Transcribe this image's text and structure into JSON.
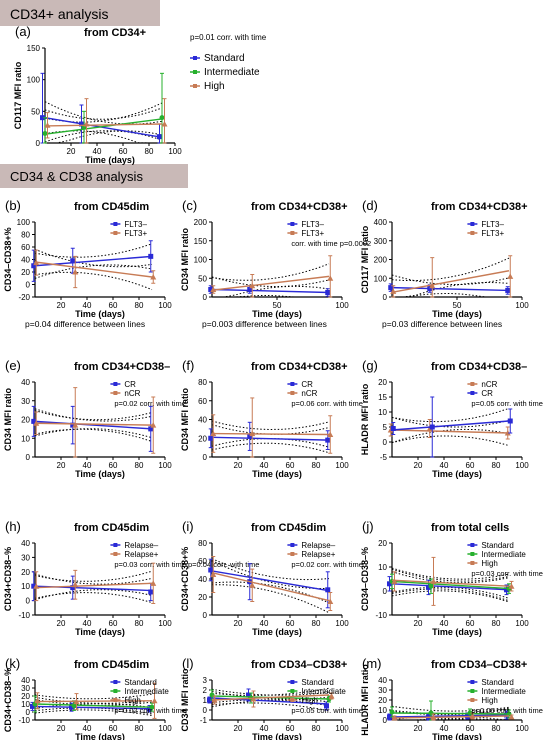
{
  "sections": [
    {
      "title": "CD34+ analysis"
    },
    {
      "title": "CD34 & CD38 analysis"
    }
  ],
  "colors": {
    "section_bg": "#c9b9b7",
    "blue": "#2a2ad6",
    "brown": "#c77b55",
    "green": "#27b02e",
    "error": "#e07b55"
  },
  "chart_data": [
    {
      "id": "a",
      "type": "line",
      "panel_label": "(a)",
      "title": "from CD34+",
      "xlabel": "Time (days)",
      "ylabel": "CD117 MFI ratio",
      "xlim": [
        0,
        100
      ],
      "ylim": [
        0,
        150
      ],
      "xticks": [
        20,
        40,
        60,
        80,
        100
      ],
      "yticks": [
        0,
        50,
        100,
        150
      ],
      "x": [
        0,
        30,
        90
      ],
      "series": [
        {
          "name": "Standard",
          "color": "#2a2ad6",
          "values": [
            40,
            30,
            10
          ],
          "err": [
            70,
            30,
            20
          ],
          "trend": [
            40,
            9
          ]
        },
        {
          "name": "Intermediate",
          "color": "#27b02e",
          "values": [
            15,
            25,
            40
          ],
          "err": [
            25,
            25,
            70
          ],
          "trend": [
            14,
            38
          ]
        },
        {
          "name": "High",
          "color": "#c77b55",
          "values": [
            28,
            30,
            30
          ],
          "err": [
            20,
            40,
            40
          ],
          "trend": [
            27,
            30
          ]
        }
      ],
      "legend_note": "p=0.01 corr. with time",
      "annotations": []
    },
    {
      "id": "b",
      "type": "line",
      "panel_label": "(b)",
      "title": "from CD45dim",
      "xlabel": "Time (days)",
      "ylabel": "CD34–CD38+%",
      "xlim": [
        0,
        100
      ],
      "ylim": [
        -20,
        100
      ],
      "xticks": [
        20,
        40,
        60,
        80,
        100
      ],
      "yticks": [
        -20,
        0,
        20,
        40,
        60,
        80,
        100
      ],
      "x": [
        0,
        30,
        90
      ],
      "series": [
        {
          "name": "FLT3–",
          "color": "#2a2ad6",
          "values": [
            30,
            38,
            45
          ],
          "err": [
            25,
            20,
            25
          ],
          "trend": [
            30,
            45
          ]
        },
        {
          "name": "FLT3+",
          "color": "#c77b55",
          "values": [
            35,
            20,
            12
          ],
          "err": [
            20,
            25,
            10
          ],
          "trend": [
            36,
            12
          ]
        }
      ],
      "legend_note": "",
      "annotations": [
        "p=0.04 difference between lines"
      ]
    },
    {
      "id": "c",
      "type": "line",
      "panel_label": "(c)",
      "title": "from CD34+CD38+",
      "xlabel": "Time (days)",
      "ylabel": "CD34 MFI ratio",
      "xlim": [
        0,
        100
      ],
      "ylim": [
        0,
        200
      ],
      "xticks": [
        50,
        100
      ],
      "yticks": [
        0,
        50,
        100,
        150,
        200
      ],
      "x": [
        0,
        30,
        90
      ],
      "series": [
        {
          "name": "FLT3–",
          "color": "#2a2ad6",
          "values": [
            20,
            20,
            12
          ],
          "err": [
            10,
            10,
            10
          ],
          "trend": [
            20,
            12
          ]
        },
        {
          "name": "FLT3+",
          "color": "#c77b55",
          "values": [
            20,
            30,
            50
          ],
          "err": [
            10,
            30,
            60
          ],
          "trend": [
            18,
            55
          ]
        }
      ],
      "legend_note": "corr. with time p=0.0002",
      "annotations": [
        "p=0.003 difference between lines"
      ]
    },
    {
      "id": "d",
      "type": "line",
      "panel_label": "(d)",
      "title": "from CD34+CD38+",
      "xlabel": "Time (days)",
      "ylabel": "CD117 MFI ratio",
      "xlim": [
        0,
        100
      ],
      "ylim": [
        0,
        400
      ],
      "xticks": [
        50,
        100
      ],
      "yticks": [
        0,
        100,
        200,
        300,
        400
      ],
      "x": [
        0,
        30,
        90
      ],
      "series": [
        {
          "name": "FLT3–",
          "color": "#2a2ad6",
          "values": [
            50,
            45,
            35
          ],
          "err": [
            20,
            20,
            20
          ],
          "trend": [
            50,
            35
          ]
        },
        {
          "name": "FLT3+",
          "color": "#c77b55",
          "values": [
            30,
            60,
            110
          ],
          "err": [
            30,
            150,
            110
          ],
          "trend": [
            25,
            140
          ]
        }
      ],
      "legend_note": "",
      "annotations": [
        "p=0.03 difference between lines"
      ]
    },
    {
      "id": "e",
      "type": "line",
      "panel_label": "(e)",
      "title": "from CD34+CD38–",
      "xlabel": "Time (days)",
      "ylabel": "CD34 MFI ratio",
      "xlim": [
        0,
        100
      ],
      "ylim": [
        0,
        40
      ],
      "xticks": [
        20,
        40,
        60,
        80,
        100
      ],
      "yticks": [
        0,
        10,
        20,
        30,
        40
      ],
      "x": [
        0,
        30,
        90
      ],
      "series": [
        {
          "name": "CR",
          "color": "#2a2ad6",
          "values": [
            19,
            17,
            15
          ],
          "err": [
            8,
            10,
            12
          ],
          "trend": [
            19,
            15
          ]
        },
        {
          "name": "nCR",
          "color": "#c77b55",
          "values": [
            18,
            17,
            17
          ],
          "err": [
            6,
            20,
            15
          ],
          "trend": [
            18,
            17
          ]
        }
      ],
      "legend_note": "p=0.02 corr. with time",
      "annotations": []
    },
    {
      "id": "f",
      "type": "line",
      "panel_label": "(f)",
      "title": "from CD34+CD38+",
      "xlabel": "Time (days)",
      "ylabel": "CD34 MFI ratio",
      "xlim": [
        0,
        100
      ],
      "ylim": [
        0,
        80
      ],
      "xticks": [
        20,
        40,
        60,
        80,
        100
      ],
      "yticks": [
        0,
        20,
        40,
        60,
        80
      ],
      "x": [
        0,
        30,
        90
      ],
      "series": [
        {
          "name": "CR",
          "color": "#2a2ad6",
          "values": [
            20,
            22,
            18
          ],
          "err": [
            10,
            15,
            10
          ],
          "trend": [
            21,
            18
          ]
        },
        {
          "name": "nCR",
          "color": "#c77b55",
          "values": [
            25,
            25,
            24
          ],
          "err": [
            20,
            38,
            20
          ],
          "trend": [
            25,
            24
          ]
        }
      ],
      "legend_note": "p=0.06 corr. with time",
      "annotations": []
    },
    {
      "id": "g",
      "type": "line",
      "panel_label": "(g)",
      "title": "from CD34+CD38–",
      "xlabel": "Time (days)",
      "ylabel": "HLADR MFI ratio",
      "xlim": [
        0,
        100
      ],
      "ylim": [
        -5,
        20
      ],
      "xticks": [
        20,
        40,
        60,
        80,
        100
      ],
      "yticks": [
        -5,
        0,
        5,
        10,
        15,
        20
      ],
      "x": [
        0,
        30,
        90
      ],
      "series": [
        {
          "name": "nCR",
          "color": "#c77b55",
          "values": [
            4,
            4.5,
            3
          ],
          "err": [
            2,
            3,
            2
          ],
          "trend": [
            4,
            3
          ]
        },
        {
          "name": "CR",
          "color": "#2a2ad6",
          "values": [
            4.5,
            5,
            7
          ],
          "err": [
            2,
            10,
            4
          ],
          "trend": [
            4,
            7
          ]
        }
      ],
      "legend_note": "p=0.05 corr. with time",
      "annotations": []
    },
    {
      "id": "h",
      "type": "line",
      "panel_label": "(h)",
      "title": "from CD45dim",
      "xlabel": "Time (days)",
      "ylabel": "CD34+CD38–%",
      "xlim": [
        0,
        100
      ],
      "ylim": [
        -10,
        40
      ],
      "xticks": [
        20,
        40,
        60,
        80,
        100
      ],
      "yticks": [
        -10,
        0,
        10,
        20,
        30,
        40
      ],
      "x": [
        0,
        30,
        90
      ],
      "series": [
        {
          "name": "Relapse–",
          "color": "#2a2ad6",
          "values": [
            10,
            9,
            6
          ],
          "err": [
            10,
            8,
            6
          ],
          "trend": [
            10,
            7
          ]
        },
        {
          "name": "Relapse+",
          "color": "#c77b55",
          "values": [
            10,
            11,
            12
          ],
          "err": [
            10,
            10,
            14
          ],
          "trend": [
            9,
            12
          ]
        }
      ],
      "legend_note": "p=0.03 corr. with time  p=0.04 corr. with time",
      "annotations": []
    },
    {
      "id": "i",
      "type": "line",
      "panel_label": "(i)",
      "title": "from CD45dim",
      "xlabel": "Time (days)",
      "ylabel": "CD34+CD38+%",
      "xlim": [
        0,
        100
      ],
      "ylim": [
        0,
        80
      ],
      "xticks": [
        20,
        40,
        60,
        80,
        100
      ],
      "yticks": [
        0,
        20,
        40,
        60,
        80
      ],
      "x": [
        0,
        30,
        90
      ],
      "series": [
        {
          "name": "Relapse–",
          "color": "#2a2ad6",
          "values": [
            50,
            37,
            28
          ],
          "err": [
            12,
            20,
            20
          ],
          "trend": [
            49,
            27
          ]
        },
        {
          "name": "Relapse+",
          "color": "#c77b55",
          "values": [
            45,
            33,
            15
          ],
          "err": [
            20,
            18,
            10
          ],
          "trend": [
            47,
            16
          ]
        }
      ],
      "legend_note": "p=0.02 corr. with time",
      "annotations": []
    },
    {
      "id": "j",
      "type": "line",
      "panel_label": "(j)",
      "title": "from total cells",
      "xlabel": "Time (days)",
      "ylabel": "CD34–CD38–%",
      "xlim": [
        0,
        100
      ],
      "ylim": [
        -10,
        20
      ],
      "xticks": [
        20,
        40,
        60,
        80,
        100
      ],
      "yticks": [
        -10,
        0,
        10,
        20
      ],
      "x": [
        0,
        30,
        90
      ],
      "series": [
        {
          "name": "Standard",
          "color": "#2a2ad6",
          "values": [
            3,
            1.5,
            0.5
          ],
          "err": [
            3,
            3,
            2
          ],
          "trend": [
            3,
            0.5
          ]
        },
        {
          "name": "Intermediate",
          "color": "#27b02e",
          "values": [
            4,
            2,
            1
          ],
          "err": [
            3,
            3,
            2
          ],
          "trend": [
            4,
            1
          ]
        },
        {
          "name": "High",
          "color": "#c77b55",
          "values": [
            4,
            4,
            2
          ],
          "err": [
            4,
            10,
            2
          ],
          "trend": [
            4.5,
            2
          ]
        }
      ],
      "legend_note": "p=0.03 corr. with time",
      "annotations": []
    },
    {
      "id": "k",
      "type": "line",
      "panel_label": "(k)",
      "title": "from CD45dim",
      "xlabel": "Time (days)",
      "ylabel": "CD34+CD38–%",
      "xlim": [
        0,
        100
      ],
      "ylim": [
        -10,
        40
      ],
      "xticks": [
        20,
        40,
        60,
        80,
        100
      ],
      "yticks": [
        -10,
        0,
        10,
        20,
        30,
        40
      ],
      "x": [
        0,
        30,
        90
      ],
      "series": [
        {
          "name": "Standard",
          "color": "#2a2ad6",
          "values": [
            7,
            6,
            4
          ],
          "err": [
            5,
            5,
            4
          ],
          "trend": [
            7,
            4
          ]
        },
        {
          "name": "Intermediate",
          "color": "#27b02e",
          "values": [
            10,
            8,
            6
          ],
          "err": [
            10,
            6,
            5
          ],
          "trend": [
            10,
            6
          ]
        },
        {
          "name": "High",
          "color": "#c77b55",
          "values": [
            14,
            13,
            14
          ],
          "err": [
            10,
            10,
            22
          ],
          "trend": [
            13,
            14
          ]
        }
      ],
      "legend_note": "p=0.02 corr. with time",
      "annotations": []
    },
    {
      "id": "l",
      "type": "line",
      "panel_label": "(l)",
      "title": "from CD34–CD38+",
      "xlabel": "Time (days)",
      "ylabel": "CD34 MFI ratio",
      "xlim": [
        0,
        100
      ],
      "ylim": [
        -1,
        3
      ],
      "xticks": [
        20,
        40,
        60,
        80,
        100
      ],
      "yticks": [
        -1,
        0,
        1,
        2,
        3
      ],
      "x": [
        0,
        30,
        90
      ],
      "series": [
        {
          "name": "Standard",
          "color": "#2a2ad6",
          "values": [
            1.0,
            1.5,
            0.4
          ],
          "err": [
            0.3,
            0.6,
            0.4
          ],
          "trend": [
            1.2,
            0.6
          ]
        },
        {
          "name": "Intermediate",
          "color": "#27b02e",
          "values": [
            1.5,
            1.2,
            1.1
          ],
          "err": [
            0.5,
            0.5,
            0.3
          ],
          "trend": [
            1.4,
            1.1
          ]
        },
        {
          "name": "High",
          "color": "#c77b55",
          "values": [
            1.0,
            1.1,
            1.4
          ],
          "err": [
            0.4,
            0.8,
            0.3
          ],
          "trend": [
            1.0,
            1.5
          ]
        }
      ],
      "legend_note": "p=0.05 corr. with time",
      "annotations": []
    },
    {
      "id": "m",
      "type": "line",
      "panel_label": "(m)",
      "title": "from CD34–CD38+",
      "xlabel": "Time (days)",
      "ylabel": "HLADR MFI ratio",
      "xlim": [
        0,
        100
      ],
      "ylim": [
        0,
        40
      ],
      "xticks": [
        20,
        40,
        60,
        80,
        100
      ],
      "yticks": [
        0,
        10,
        20,
        30,
        40
      ],
      "x": [
        0,
        30,
        60,
        90
      ],
      "series": [
        {
          "name": "Standard",
          "color": "#2a2ad6",
          "values": [
            3,
            3,
            4,
            5
          ],
          "err": [
            3,
            3,
            3,
            4
          ],
          "trend": [
            3,
            5
          ]
        },
        {
          "name": "Intermediate",
          "color": "#27b02e",
          "values": [
            8,
            7,
            7,
            6
          ],
          "err": [
            5,
            12,
            4,
            4
          ],
          "trend": [
            7,
            6
          ]
        },
        {
          "name": "High",
          "color": "#c77b55",
          "values": [
            2,
            3,
            4,
            3
          ],
          "err": [
            2,
            3,
            3,
            2
          ],
          "trend": [
            2,
            4
          ]
        }
      ],
      "legend_note": "p=0.06 corr. with time",
      "annotations": []
    }
  ]
}
